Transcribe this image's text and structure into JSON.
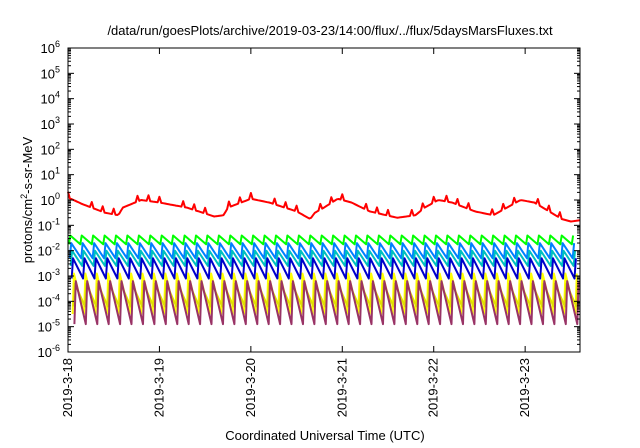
{
  "chart_data": {
    "type": "line",
    "title": "/data/run/goesPlots/archive/2019-03-23/14:00/flux/../flux/5daysMarsFluxes.txt",
    "xlabel": "Coordinated Universal Time (UTC)",
    "ylabel_prefix": "protons/cm",
    "ylabel_sup": "2",
    "ylabel_suffix": "-s-sr-MeV",
    "yscale": "log",
    "ylim_exponents": [
      -6,
      6
    ],
    "y_tick_base": "10",
    "y_tick_exponents": [
      "6",
      "5",
      "4",
      "3",
      "2",
      "1",
      "0",
      "-1",
      "-2",
      "-3",
      "-4",
      "-5",
      "-6"
    ],
    "x_unit": "days since 2019-03-18 00:00 UTC",
    "xlim": [
      0,
      5.6
    ],
    "x_ticks": [
      {
        "x": 0,
        "label": "2019-3-18"
      },
      {
        "x": 1,
        "label": "2019-3-19"
      },
      {
        "x": 2,
        "label": "2019-3-20"
      },
      {
        "x": 3,
        "label": "2019-3-21"
      },
      {
        "x": 4,
        "label": "2019-3-22"
      },
      {
        "x": 5,
        "label": "2019-3-23"
      }
    ],
    "grid": false,
    "legend": "none",
    "period_days": 0.125,
    "series": [
      {
        "color": "#ff0000",
        "kind": "envelope",
        "envelope": [
          [
            0,
            0.1
          ],
          [
            0.15,
            -0.15
          ],
          [
            0.4,
            -0.5
          ],
          [
            0.55,
            -0.6
          ],
          [
            0.6,
            -0.3
          ],
          [
            0.8,
            0.0
          ],
          [
            1.0,
            -0.1
          ],
          [
            1.3,
            -0.3
          ],
          [
            1.6,
            -0.65
          ],
          [
            1.7,
            -0.6
          ],
          [
            1.75,
            -0.3
          ],
          [
            2.0,
            0.05
          ],
          [
            2.2,
            -0.1
          ],
          [
            2.5,
            -0.45
          ],
          [
            2.65,
            -0.75
          ],
          [
            2.7,
            -0.5
          ],
          [
            2.8,
            -0.3
          ],
          [
            2.95,
            0.05
          ],
          [
            3.1,
            -0.1
          ],
          [
            3.3,
            -0.45
          ],
          [
            3.6,
            -0.7
          ],
          [
            3.8,
            -0.6
          ],
          [
            3.9,
            -0.3
          ],
          [
            4.05,
            0.0
          ],
          [
            4.2,
            -0.1
          ],
          [
            4.45,
            -0.45
          ],
          [
            4.65,
            -0.6
          ],
          [
            4.8,
            -0.3
          ],
          [
            4.95,
            0.0
          ],
          [
            5.1,
            -0.1
          ],
          [
            5.4,
            -0.75
          ],
          [
            5.5,
            -0.85
          ],
          [
            5.6,
            -0.8
          ]
        ],
        "amp_decades": 0.45
      },
      {
        "color": "#00ff00",
        "kind": "sawtooth",
        "hi": -1.4,
        "lo": -1.75
      },
      {
        "color": "#0080ff",
        "kind": "sawtooth",
        "hi": -1.7,
        "lo": -2.3
      },
      {
        "color": "#00c0c0",
        "kind": "sawtooth",
        "hi": -2.0,
        "lo": -2.6
      },
      {
        "color": "#0000cc",
        "kind": "sawtooth",
        "hi": -2.3,
        "lo": -3.1
      },
      {
        "color": "#ffff00",
        "kind": "sawtooth",
        "hi": -2.9,
        "lo": -4.5
      },
      {
        "color": "#e0e000",
        "kind": "sawtooth",
        "hi": -3.3,
        "lo": -4.2
      },
      {
        "color": "#993366",
        "kind": "sawtooth",
        "hi": -3.2,
        "lo": -4.9
      }
    ]
  }
}
